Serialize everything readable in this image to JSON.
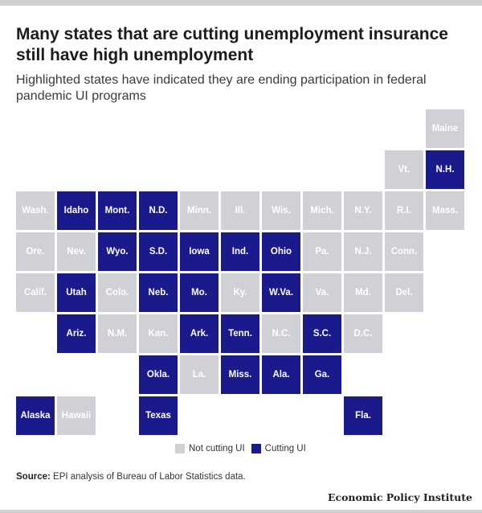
{
  "header": {
    "title": "Many states that are cutting unemployment insurance still have high unemployment",
    "subtitle": "Highlighted states have indicated they are ending participation in federal pandemic UI programs"
  },
  "colors": {
    "cutting": "#1b1a8c",
    "not_cutting": "#cfd1d6"
  },
  "chart_data": {
    "type": "tile-map",
    "legend": {
      "not_cutting": "Not cutting UI",
      "cutting": "Cutting UI"
    },
    "states": [
      {
        "label": "Maine",
        "row": 0,
        "col": 10,
        "cutting": false
      },
      {
        "label": "Vt.",
        "row": 1,
        "col": 9,
        "cutting": false
      },
      {
        "label": "N.H.",
        "row": 1,
        "col": 10,
        "cutting": true
      },
      {
        "label": "Wash.",
        "row": 2,
        "col": 0,
        "cutting": false
      },
      {
        "label": "Idaho",
        "row": 2,
        "col": 1,
        "cutting": true
      },
      {
        "label": "Mont.",
        "row": 2,
        "col": 2,
        "cutting": true
      },
      {
        "label": "N.D.",
        "row": 2,
        "col": 3,
        "cutting": true
      },
      {
        "label": "Minn.",
        "row": 2,
        "col": 4,
        "cutting": false
      },
      {
        "label": "Ill.",
        "row": 2,
        "col": 5,
        "cutting": false
      },
      {
        "label": "Wis.",
        "row": 2,
        "col": 6,
        "cutting": false
      },
      {
        "label": "Mich.",
        "row": 2,
        "col": 7,
        "cutting": false
      },
      {
        "label": "N.Y.",
        "row": 2,
        "col": 8,
        "cutting": false
      },
      {
        "label": "R.I.",
        "row": 2,
        "col": 9,
        "cutting": false
      },
      {
        "label": "Mass.",
        "row": 2,
        "col": 10,
        "cutting": false
      },
      {
        "label": "Ore.",
        "row": 3,
        "col": 0,
        "cutting": false
      },
      {
        "label": "Nev.",
        "row": 3,
        "col": 1,
        "cutting": false
      },
      {
        "label": "Wyo.",
        "row": 3,
        "col": 2,
        "cutting": true
      },
      {
        "label": "S.D.",
        "row": 3,
        "col": 3,
        "cutting": true
      },
      {
        "label": "Iowa",
        "row": 3,
        "col": 4,
        "cutting": true
      },
      {
        "label": "Ind.",
        "row": 3,
        "col": 5,
        "cutting": true
      },
      {
        "label": "Ohio",
        "row": 3,
        "col": 6,
        "cutting": true
      },
      {
        "label": "Pa.",
        "row": 3,
        "col": 7,
        "cutting": false
      },
      {
        "label": "N.J.",
        "row": 3,
        "col": 8,
        "cutting": false
      },
      {
        "label": "Conn.",
        "row": 3,
        "col": 9,
        "cutting": false
      },
      {
        "label": "Calif.",
        "row": 4,
        "col": 0,
        "cutting": false
      },
      {
        "label": "Utah",
        "row": 4,
        "col": 1,
        "cutting": true
      },
      {
        "label": "Colo.",
        "row": 4,
        "col": 2,
        "cutting": false
      },
      {
        "label": "Neb.",
        "row": 4,
        "col": 3,
        "cutting": true
      },
      {
        "label": "Mo.",
        "row": 4,
        "col": 4,
        "cutting": true
      },
      {
        "label": "Ky.",
        "row": 4,
        "col": 5,
        "cutting": false
      },
      {
        "label": "W.Va.",
        "row": 4,
        "col": 6,
        "cutting": true
      },
      {
        "label": "Va.",
        "row": 4,
        "col": 7,
        "cutting": false
      },
      {
        "label": "Md.",
        "row": 4,
        "col": 8,
        "cutting": false
      },
      {
        "label": "Del.",
        "row": 4,
        "col": 9,
        "cutting": false
      },
      {
        "label": "Ariz.",
        "row": 5,
        "col": 1,
        "cutting": true
      },
      {
        "label": "N.M.",
        "row": 5,
        "col": 2,
        "cutting": false
      },
      {
        "label": "Kan.",
        "row": 5,
        "col": 3,
        "cutting": false
      },
      {
        "label": "Ark.",
        "row": 5,
        "col": 4,
        "cutting": true
      },
      {
        "label": "Tenn.",
        "row": 5,
        "col": 5,
        "cutting": true
      },
      {
        "label": "N.C.",
        "row": 5,
        "col": 6,
        "cutting": false
      },
      {
        "label": "S.C.",
        "row": 5,
        "col": 7,
        "cutting": true
      },
      {
        "label": "D.C.",
        "row": 5,
        "col": 8,
        "cutting": false
      },
      {
        "label": "Okla.",
        "row": 6,
        "col": 3,
        "cutting": true
      },
      {
        "label": "La.",
        "row": 6,
        "col": 4,
        "cutting": false
      },
      {
        "label": "Miss.",
        "row": 6,
        "col": 5,
        "cutting": true
      },
      {
        "label": "Ala.",
        "row": 6,
        "col": 6,
        "cutting": true
      },
      {
        "label": "Ga.",
        "row": 6,
        "col": 7,
        "cutting": true
      },
      {
        "label": "Alaska",
        "row": 7,
        "col": 0,
        "cutting": true
      },
      {
        "label": "Hawaii",
        "row": 7,
        "col": 1,
        "cutting": false
      },
      {
        "label": "Texas",
        "row": 7,
        "col": 3,
        "cutting": true
      },
      {
        "label": "Fla.",
        "row": 7,
        "col": 8,
        "cutting": true
      }
    ]
  },
  "footer": {
    "source_label": "Source:",
    "source_text": "EPI analysis of Bureau of Labor Statistics data.",
    "brand": "Economic Policy Institute"
  }
}
